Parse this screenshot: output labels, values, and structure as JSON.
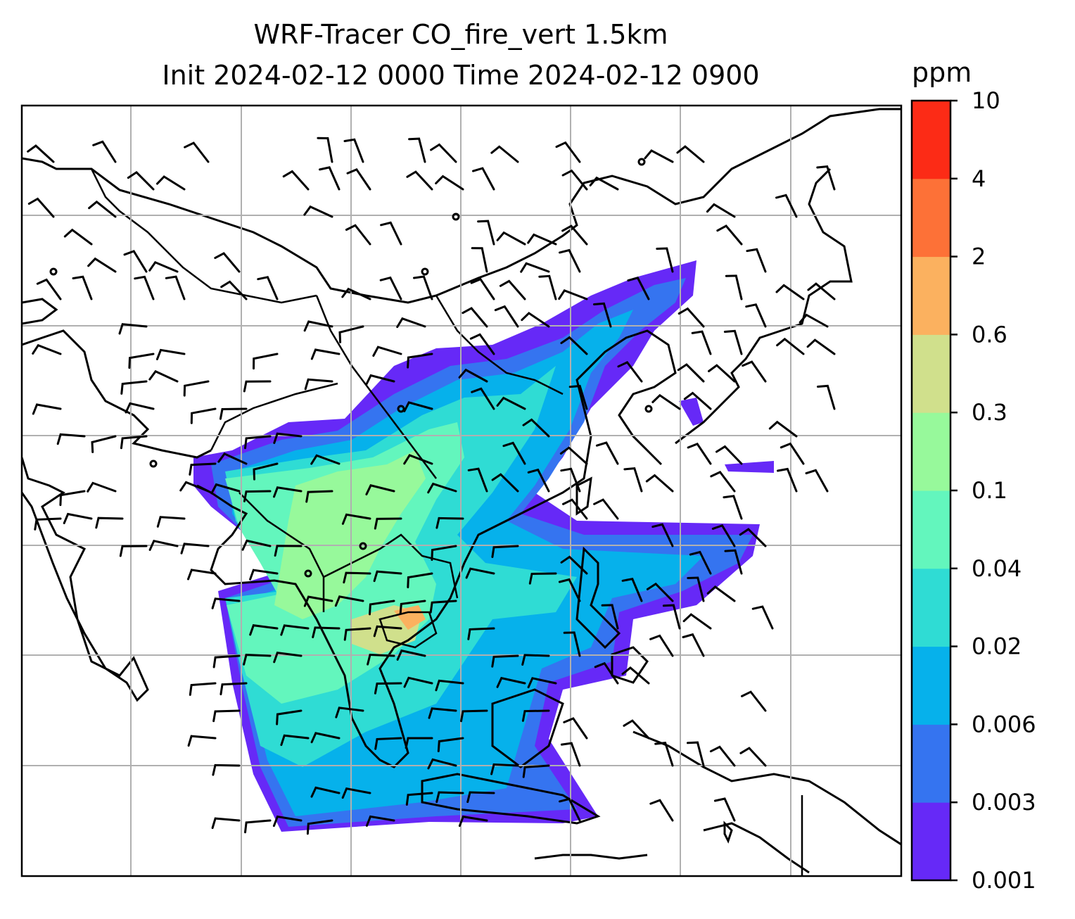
{
  "title": {
    "line1": "WRF-Tracer CO_fire_vert 1.5km",
    "line2": "Init 2024-02-12 0000 Time 2024-02-12 0900"
  },
  "colorbar": {
    "unit": "ppm",
    "levels": [
      "0.001",
      "0.003",
      "0.006",
      "0.02",
      "0.04",
      "0.1",
      "0.3",
      "0.6",
      "2",
      "4",
      "10"
    ],
    "colors": [
      "#6629f7",
      "#3574f0",
      "#06b1eb",
      "#2fdcd4",
      "#63f6bd",
      "#97f99b",
      "#d0e08c",
      "#fbb15f",
      "#fd7137",
      "#fc2b16"
    ]
  },
  "map": {
    "variable": "CO_fire_vert",
    "level": "1.5km",
    "gridlines": true,
    "layers": [
      "coastlines",
      "country-borders",
      "co-fire-tracer-fill",
      "wind-barbs"
    ]
  }
}
